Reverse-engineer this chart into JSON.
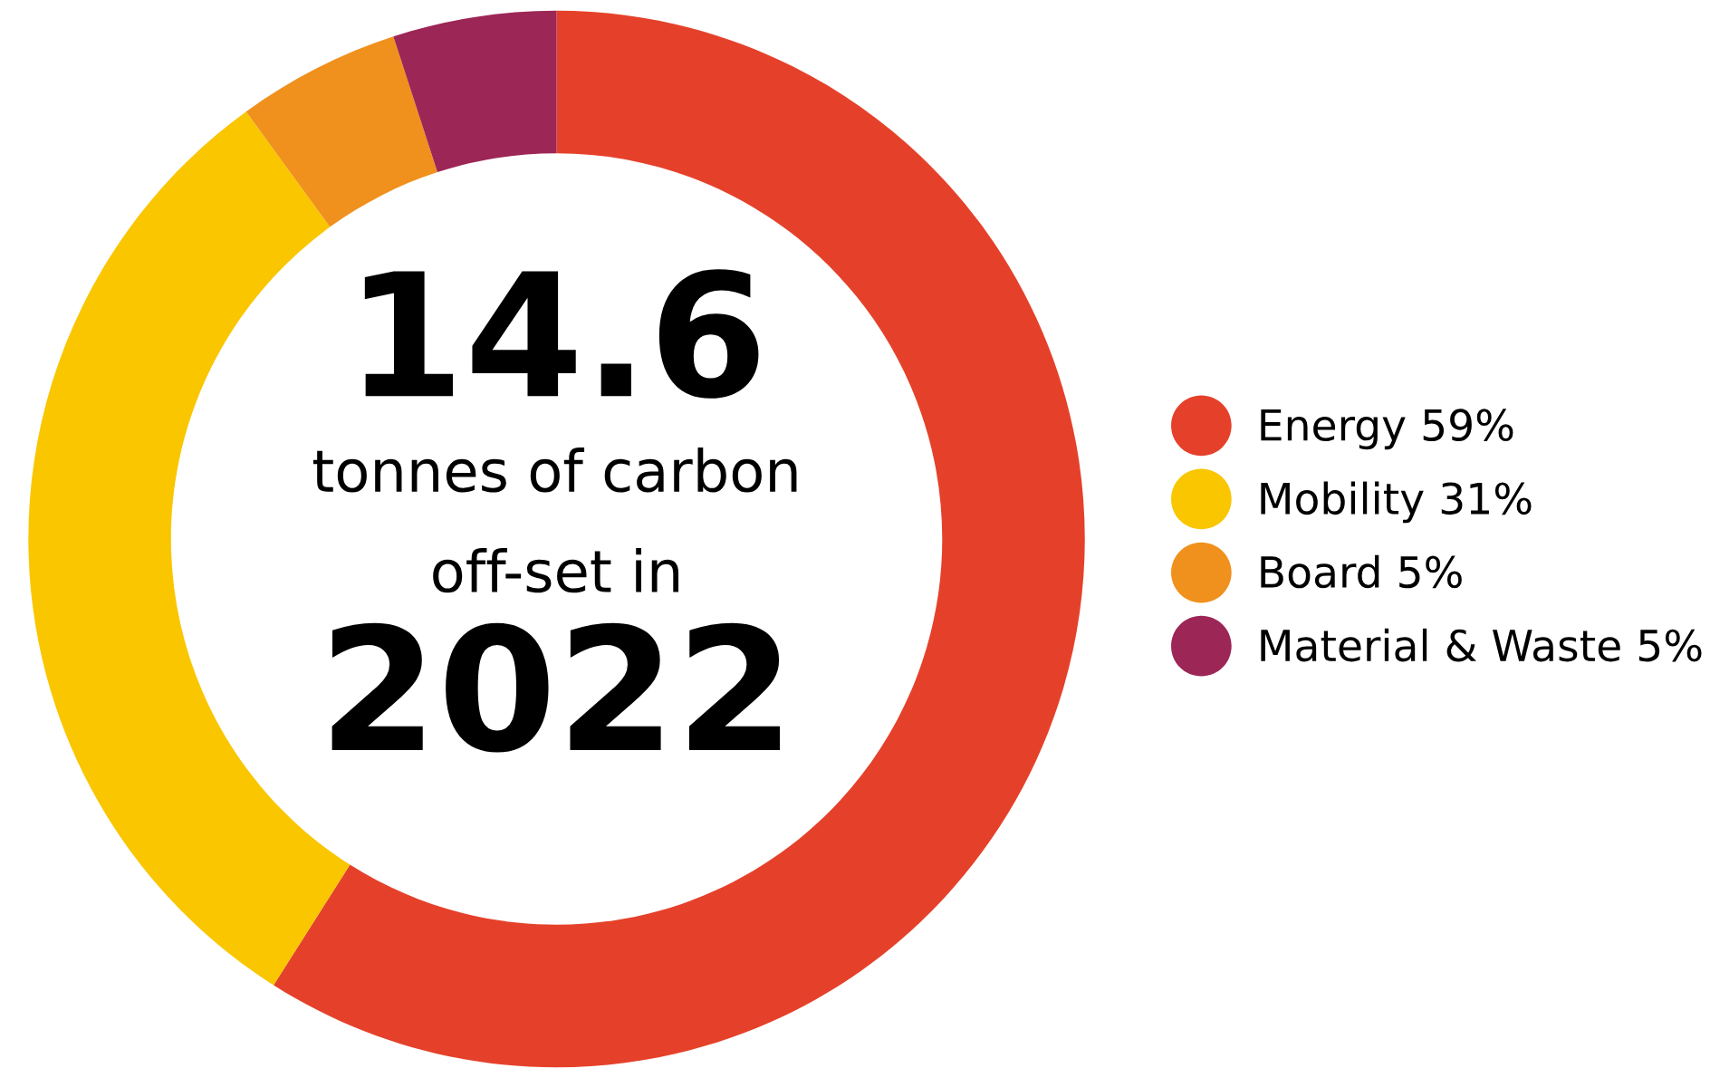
{
  "chart_data": {
    "type": "donut",
    "categories": [
      "Energy",
      "Mobility",
      "Board",
      "Material & Waste"
    ],
    "values": [
      59,
      31,
      5,
      5
    ],
    "value_labels": [
      "59%",
      "31%",
      "5%",
      "5%"
    ],
    "colors": [
      "#e5412a",
      "#f9c600",
      "#f0901d",
      "#9c2656"
    ],
    "annotations": [
      "14.6",
      "tonnes of carbon",
      "off-set in",
      "2022"
    ],
    "legend": "right"
  }
}
